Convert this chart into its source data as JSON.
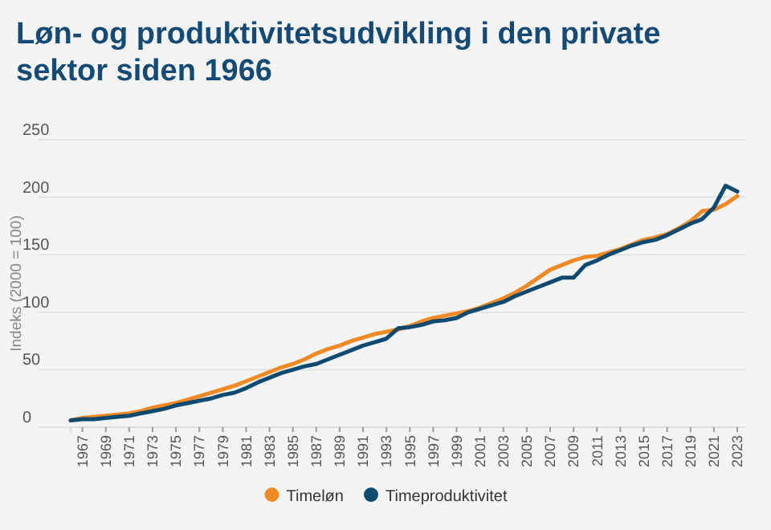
{
  "chart_data": {
    "type": "line",
    "title": "Løn- og produktivitetsudvikling i den private sektor siden 1966",
    "ylabel": "Indeks (2000 = 100)",
    "x": [
      1966,
      1967,
      1968,
      1969,
      1970,
      1971,
      1972,
      1973,
      1974,
      1975,
      1976,
      1977,
      1978,
      1979,
      1980,
      1981,
      1982,
      1983,
      1984,
      1985,
      1986,
      1987,
      1988,
      1989,
      1990,
      1991,
      1992,
      1993,
      1994,
      1995,
      1996,
      1997,
      1998,
      1999,
      2000,
      2001,
      2002,
      2003,
      2004,
      2005,
      2006,
      2007,
      2008,
      2009,
      2010,
      2011,
      2012,
      2013,
      2014,
      2015,
      2016,
      2017,
      2018,
      2019,
      2020,
      2021,
      2022,
      2023
    ],
    "series": [
      {
        "name": "Timeløn",
        "color": "#f08a24",
        "values": [
          6,
          8,
          9,
          10,
          11,
          12,
          14,
          17,
          19,
          21,
          24,
          27,
          30,
          33,
          36,
          40,
          44,
          48,
          52,
          55,
          59,
          64,
          68,
          71,
          75,
          78,
          81,
          83,
          85,
          88,
          92,
          95,
          97,
          99,
          101,
          104,
          108,
          112,
          117,
          123,
          130,
          137,
          141,
          145,
          148,
          149,
          152,
          155,
          159,
          163,
          165,
          168,
          173,
          179,
          188,
          189,
          194,
          201
        ]
      },
      {
        "name": "Timeproduktivitet",
        "color": "#0d4a72",
        "values": [
          6,
          7,
          7,
          8,
          9,
          10,
          12,
          14,
          16,
          19,
          21,
          23,
          25,
          28,
          30,
          34,
          39,
          43,
          47,
          50,
          53,
          55,
          59,
          63,
          67,
          71,
          74,
          77,
          86,
          87,
          89,
          92,
          93,
          95,
          100,
          103,
          106,
          109,
          114,
          118,
          122,
          126,
          130,
          130,
          141,
          145,
          150,
          154,
          158,
          161,
          163,
          167,
          172,
          177,
          181,
          191,
          210,
          205
        ]
      }
    ],
    "xlim": [
      1966,
      2023
    ],
    "xticks": [
      1967,
      1969,
      1971,
      1973,
      1975,
      1977,
      1979,
      1981,
      1983,
      1985,
      1987,
      1989,
      1991,
      1993,
      1995,
      1997,
      1999,
      2001,
      2003,
      2005,
      2007,
      2009,
      2011,
      2013,
      2015,
      2017,
      2019,
      2021,
      2023
    ],
    "ylim": [
      0,
      250
    ],
    "yticks": [
      0,
      50,
      100,
      150,
      200,
      250
    ],
    "grid": "y",
    "legend": "bottom",
    "marker": "none",
    "line_style": "solid"
  }
}
